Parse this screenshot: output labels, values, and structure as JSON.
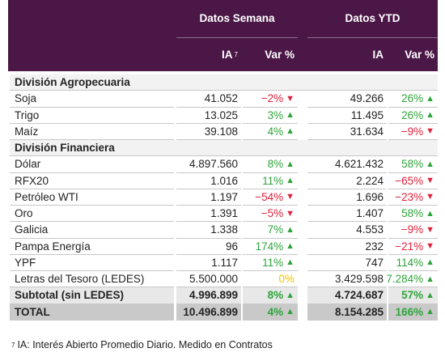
{
  "header": {
    "groups": [
      "Datos Semana",
      "Datos YTD"
    ],
    "columns": [
      "IA",
      "Var %",
      "IA",
      "Var %"
    ],
    "footnote_marker": "7"
  },
  "sections": [
    {
      "title": "División Agropecuaria",
      "rows": [
        [
          "Soja",
          "41.052",
          "−2%",
          "49.266",
          "26%"
        ],
        [
          "Trigo",
          "13.025",
          "3%",
          "11.495",
          "26%"
        ],
        [
          "Maíz",
          "39.108",
          "4%",
          "31.634",
          "−9%"
        ]
      ]
    },
    {
      "title": "División Financiera",
      "rows": [
        [
          "Dólar",
          "4.897.560",
          "8%",
          "4.621.432",
          "58%"
        ],
        [
          "RFX20",
          "1.016",
          "11%",
          "2.224",
          "−65%"
        ],
        [
          "Petróleo WTI",
          "1.197",
          "−54%",
          "1.696",
          "−23%"
        ],
        [
          "Oro",
          "1.391",
          "−5%",
          "1.407",
          "58%"
        ],
        [
          "Galicia",
          "1.338",
          "7%",
          "4.553",
          "−9%"
        ],
        [
          "Pampa Energía",
          "96",
          "174%",
          "232",
          "−21%"
        ],
        [
          "YPF",
          "1.117",
          "11%",
          "747",
          "114%"
        ],
        [
          "Letras del Tesoro (LEDES)",
          "5.500.000",
          "0%",
          "3.429.598",
          "7.284%"
        ]
      ]
    }
  ],
  "summary_rows": [
    [
      "Subtotal (sin LEDES)",
      "4.996.899",
      "8%",
      "4.724.687",
      "57%"
    ],
    [
      "TOTAL",
      "10.496.899",
      "4%",
      "8.154.285",
      "166%"
    ]
  ],
  "footnote": {
    "marker": "7",
    "text": "IA: Interés Abierto Promedio Diario. Medido en Contratos"
  }
}
